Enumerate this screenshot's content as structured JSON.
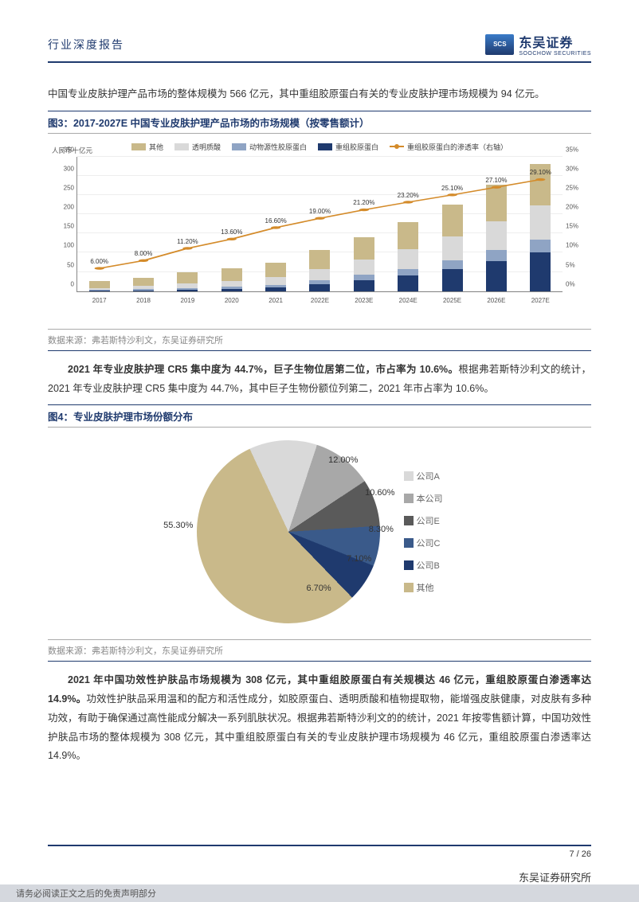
{
  "header": {
    "title": "行业深度报告",
    "logo_cn": "东吴证券",
    "logo_en": "SOOCHOW SECURITIES",
    "logo_mark": "SCS"
  },
  "para1": "中国专业皮肤护理产品市场的整体规模为 566 亿元，其中重组胶原蛋白有关的专业皮肤护理市场规模为 94 亿元。",
  "fig3": {
    "title": "图3：2017-2027E 中国专业皮肤护理产品市场的市场规模（按零售额计）",
    "y_axis_title": "人民币十亿元",
    "y_left_max": 350,
    "y_left_ticks": [
      0,
      50,
      100,
      150,
      200,
      250,
      300,
      350
    ],
    "y_right_ticks": [
      "0%",
      "5%",
      "10%",
      "15%",
      "20%",
      "25%",
      "30%",
      "35%"
    ],
    "categories": [
      "2017",
      "2018",
      "2019",
      "2020",
      "2021",
      "2022E",
      "2023E",
      "2024E",
      "2025E",
      "2026E",
      "2027E"
    ],
    "legend": [
      {
        "label": "其他",
        "color": "#c9b98a"
      },
      {
        "label": "透明质酸",
        "color": "#d9d9d9"
      },
      {
        "label": "动物源性胶原蛋白",
        "color": "#8fa4c4"
      },
      {
        "label": "重组胶原蛋白",
        "color": "#1f3a6e"
      },
      {
        "label": "重组胶原蛋白的渗透率（右轴）",
        "color": "#d48b2a",
        "type": "line"
      }
    ],
    "stacks": [
      {
        "other": 18,
        "ha": 5,
        "animal": 2,
        "recomb": 1
      },
      {
        "other": 22,
        "ha": 8,
        "animal": 3,
        "recomb": 2
      },
      {
        "other": 28,
        "ha": 12,
        "animal": 4,
        "recomb": 4
      },
      {
        "other": 32,
        "ha": 16,
        "animal": 5,
        "recomb": 6
      },
      {
        "other": 38,
        "ha": 20,
        "animal": 7,
        "recomb": 9
      },
      {
        "other": 48,
        "ha": 30,
        "animal": 10,
        "recomb": 18
      },
      {
        "other": 58,
        "ha": 40,
        "animal": 14,
        "recomb": 28
      },
      {
        "other": 70,
        "ha": 50,
        "animal": 18,
        "recomb": 40
      },
      {
        "other": 82,
        "ha": 62,
        "animal": 22,
        "recomb": 58
      },
      {
        "other": 95,
        "ha": 75,
        "animal": 28,
        "recomb": 78
      },
      {
        "other": 108,
        "ha": 88,
        "animal": 33,
        "recomb": 100
      }
    ],
    "line_labels": [
      "6.00%",
      "8.00%",
      "11.20%",
      "13.60%",
      "16.60%",
      "19.00%",
      "21.20%",
      "23.20%",
      "25.10%",
      "27.10%",
      "29.10%"
    ],
    "line_values_pct_of_35": [
      17.1,
      22.9,
      32.0,
      38.9,
      47.4,
      54.3,
      60.6,
      66.3,
      71.7,
      77.4,
      83.1
    ],
    "source": "数据来源：弗若斯特沙利文，东吴证券研究所",
    "colors": {
      "other": "#c9b98a",
      "ha": "#d9d9d9",
      "animal": "#8fa4c4",
      "recomb": "#1f3a6e",
      "line": "#d48b2a"
    }
  },
  "para2_bold": "2021 年专业皮肤护理 CR5 集中度为 44.7%，巨子生物位居第二位，市占率为 10.6%。",
  "para2_rest": "根据弗若斯特沙利文的统计，2021 年专业皮肤护理 CR5 集中度为 44.7%，其中巨子生物份额位列第二，2021 年市占率为 10.6%。",
  "fig4": {
    "title": "图4：专业皮肤护理市场份额分布",
    "slices": [
      {
        "label": "公司A",
        "value": 12.0,
        "color": "#d9d9d9",
        "disp": "12.00%"
      },
      {
        "label": "本公司",
        "value": 10.6,
        "color": "#a8a8a8",
        "disp": "10.60%"
      },
      {
        "label": "公司E",
        "value": 8.3,
        "color": "#5a5a5a",
        "disp": "8.30%"
      },
      {
        "label": "公司C",
        "value": 7.1,
        "color": "#3a5a8a",
        "disp": "7.10%"
      },
      {
        "label": "公司B",
        "value": 6.7,
        "color": "#1f3a6e",
        "disp": "6.70%"
      },
      {
        "label": "其他",
        "value": 55.3,
        "color": "#c9b98a",
        "disp": "55.30%"
      }
    ],
    "source": "数据来源：弗若斯特沙利文，东吴证券研究所"
  },
  "para3_bold": "2021 年中国功效性护肤品市场规模为 308 亿元，其中重组胶原蛋白有关规模达 46 亿元，重组胶原蛋白渗透率达 14.9%。",
  "para3_rest": "功效性护肤品采用温和的配方和活性成分，如胶原蛋白、透明质酸和植物提取物，能增强皮肤健康，对皮肤有多种功效，有助于确保通过高性能成分解决一系列肌肤状况。根据弗若斯特沙利文的的统计，2021 年按零售额计算，中国功效性护肤品市场的整体规模为 308 亿元，其中重组胶原蛋白有关的专业皮肤护理市场规模为 46 亿元，重组胶原蛋白渗透率达 14.9%。",
  "footer": {
    "page": "7 / 26",
    "institute": "东吴证券研究所",
    "disclaimer": "请务必阅读正文之后的免责声明部分"
  }
}
